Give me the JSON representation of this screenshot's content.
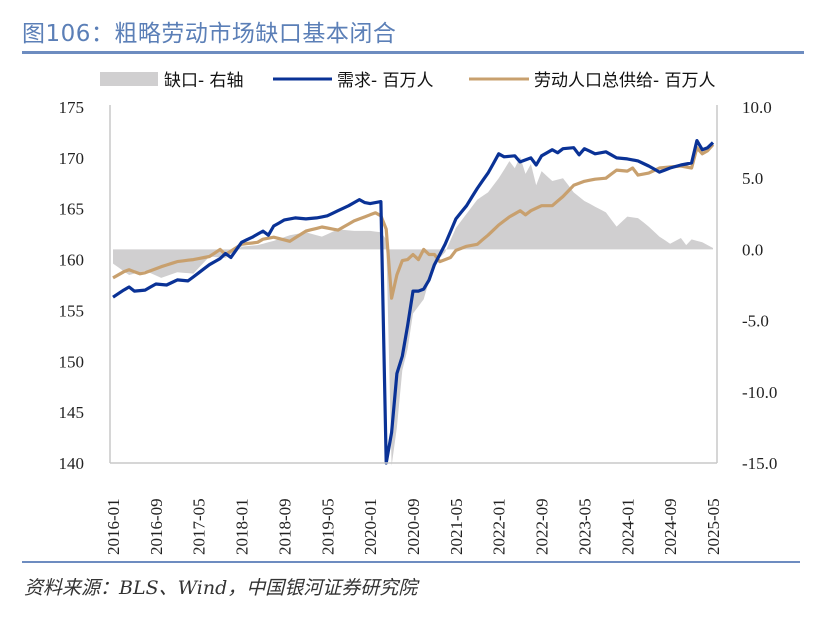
{
  "header": {
    "title": "图106：粗略劳动市场缺口基本闭合"
  },
  "footer": {
    "source": "资料来源：BLS、Wind，中国银河证券研究院"
  },
  "colors": {
    "title": "#5b7fb7",
    "rule": "#6d8cc0",
    "demand": "#0a3296",
    "supply": "#c8a06e",
    "gap": "#d0cfd0",
    "axis": "#c8c8c8"
  },
  "legend": [
    {
      "label": "缺口- 右轴",
      "type": "area"
    },
    {
      "label": "需求- 百万人",
      "type": "line"
    },
    {
      "label": "劳动人口总供给- 百万人",
      "type": "line"
    }
  ],
  "chart_data": {
    "type": "line",
    "title": "图106：粗略劳动市场缺口基本闭合",
    "x_start": "2016-01",
    "x_end": "2025-05",
    "x_months": 113,
    "xticks": [
      "2016-01",
      "2016-09",
      "2017-05",
      "2018-01",
      "2018-09",
      "2019-05",
      "2020-01",
      "2020-09",
      "2021-05",
      "2022-01",
      "2022-09",
      "2023-05",
      "2024-01",
      "2024-09",
      "2025-05"
    ],
    "left_axis": {
      "label": "百万人",
      "range": [
        140,
        175
      ],
      "ticks": [
        "175",
        "170",
        "165",
        "160",
        "155",
        "150",
        "145",
        "140"
      ]
    },
    "right_axis": {
      "label": "缺口",
      "range": [
        -15,
        10
      ],
      "ticks": [
        "10.0",
        "5.0",
        "0.0",
        "-5.0",
        "-10.0",
        "-15.0"
      ]
    },
    "legend_position": "top",
    "grid": false,
    "series": [
      {
        "name": "缺口- 右轴",
        "axis": "right",
        "kind": "area",
        "anchors": [
          [
            0,
            -1.0
          ],
          [
            3,
            -1.8
          ],
          [
            6,
            -1.5
          ],
          [
            9,
            -2.0
          ],
          [
            12,
            -1.6
          ],
          [
            15,
            -1.7
          ],
          [
            18,
            -0.5
          ],
          [
            21,
            -0.6
          ],
          [
            24,
            0.2
          ],
          [
            27,
            0.3
          ],
          [
            30,
            0.6
          ],
          [
            33,
            1.0
          ],
          [
            36,
            1.2
          ],
          [
            39,
            0.9
          ],
          [
            42,
            1.4
          ],
          [
            45,
            1.3
          ],
          [
            48,
            1.3
          ],
          [
            50,
            1.2
          ],
          [
            51,
            0.7
          ],
          [
            52,
            -15.8
          ],
          [
            53,
            -12.5
          ],
          [
            54,
            -8.5
          ],
          [
            55,
            -7.0
          ],
          [
            56,
            -4.5
          ],
          [
            57,
            -4.0
          ],
          [
            58,
            -3.5
          ],
          [
            59,
            -2.2
          ],
          [
            60,
            -1.0
          ],
          [
            62,
            -0.2
          ],
          [
            64,
            1.5
          ],
          [
            66,
            2.5
          ],
          [
            68,
            3.5
          ],
          [
            70,
            4.0
          ],
          [
            72,
            5.0
          ],
          [
            74,
            6.2
          ],
          [
            75,
            5.7
          ],
          [
            76,
            6.5
          ],
          [
            77,
            5.3
          ],
          [
            78,
            6.0
          ],
          [
            79,
            4.5
          ],
          [
            80,
            5.5
          ],
          [
            82,
            4.8
          ],
          [
            84,
            5.0
          ],
          [
            86,
            4.0
          ],
          [
            88,
            3.4
          ],
          [
            90,
            3.0
          ],
          [
            92,
            2.6
          ],
          [
            94,
            1.6
          ],
          [
            96,
            2.3
          ],
          [
            98,
            2.2
          ],
          [
            100,
            1.6
          ],
          [
            102,
            0.9
          ],
          [
            104,
            0.4
          ],
          [
            106,
            0.8
          ],
          [
            107,
            0.3
          ],
          [
            108,
            0.7
          ],
          [
            110,
            0.5
          ],
          [
            112,
            0.1
          ]
        ]
      },
      {
        "name": "需求- 百万人",
        "axis": "left",
        "kind": "line",
        "anchors": [
          [
            0,
            156.3
          ],
          [
            2,
            157.0
          ],
          [
            3,
            157.3
          ],
          [
            4,
            156.9
          ],
          [
            6,
            157.0
          ],
          [
            8,
            157.6
          ],
          [
            10,
            157.5
          ],
          [
            12,
            158.0
          ],
          [
            14,
            157.9
          ],
          [
            16,
            158.7
          ],
          [
            18,
            159.5
          ],
          [
            20,
            160.1
          ],
          [
            21,
            160.6
          ],
          [
            22,
            160.2
          ],
          [
            24,
            161.7
          ],
          [
            26,
            162.2
          ],
          [
            28,
            162.8
          ],
          [
            29,
            162.4
          ],
          [
            30,
            163.3
          ],
          [
            32,
            163.9
          ],
          [
            34,
            164.1
          ],
          [
            36,
            164.0
          ],
          [
            38,
            164.1
          ],
          [
            40,
            164.3
          ],
          [
            42,
            164.8
          ],
          [
            44,
            165.3
          ],
          [
            46,
            165.9
          ],
          [
            47,
            165.6
          ],
          [
            48,
            165.5
          ],
          [
            50,
            165.7
          ],
          [
            51,
            140.0
          ],
          [
            52,
            143.0
          ],
          [
            53,
            148.8
          ],
          [
            54,
            150.5
          ],
          [
            55,
            153.5
          ],
          [
            56,
            156.9
          ],
          [
            57,
            156.9
          ],
          [
            58,
            157.1
          ],
          [
            59,
            158.0
          ],
          [
            60,
            159.5
          ],
          [
            62,
            161.5
          ],
          [
            64,
            164.0
          ],
          [
            66,
            165.3
          ],
          [
            68,
            167.0
          ],
          [
            70,
            168.5
          ],
          [
            72,
            170.4
          ],
          [
            73,
            170.1
          ],
          [
            75,
            170.2
          ],
          [
            76,
            169.6
          ],
          [
            78,
            170.0
          ],
          [
            79,
            169.3
          ],
          [
            80,
            170.2
          ],
          [
            82,
            170.8
          ],
          [
            83,
            170.5
          ],
          [
            84,
            170.9
          ],
          [
            86,
            171.0
          ],
          [
            87,
            170.3
          ],
          [
            88,
            170.9
          ],
          [
            90,
            170.4
          ],
          [
            92,
            170.6
          ],
          [
            94,
            170.0
          ],
          [
            96,
            169.9
          ],
          [
            98,
            169.7
          ],
          [
            100,
            169.2
          ],
          [
            102,
            168.6
          ],
          [
            104,
            169.0
          ],
          [
            106,
            169.3
          ],
          [
            108,
            169.5
          ],
          [
            109,
            171.7
          ],
          [
            110,
            170.8
          ],
          [
            111,
            171.0
          ],
          [
            112,
            171.5
          ]
        ]
      },
      {
        "name": "劳动人口总供给- 百万人",
        "axis": "left",
        "kind": "line",
        "anchors": [
          [
            0,
            158.2
          ],
          [
            2,
            158.8
          ],
          [
            3,
            159.0
          ],
          [
            5,
            158.6
          ],
          [
            6,
            158.7
          ],
          [
            9,
            159.3
          ],
          [
            12,
            159.8
          ],
          [
            15,
            160.0
          ],
          [
            18,
            160.3
          ],
          [
            20,
            161.0
          ],
          [
            21,
            160.5
          ],
          [
            24,
            161.5
          ],
          [
            27,
            161.7
          ],
          [
            28,
            162.0
          ],
          [
            30,
            162.2
          ],
          [
            33,
            161.8
          ],
          [
            36,
            162.8
          ],
          [
            39,
            163.2
          ],
          [
            42,
            162.9
          ],
          [
            45,
            163.8
          ],
          [
            47,
            164.2
          ],
          [
            48,
            164.4
          ],
          [
            49,
            164.6
          ],
          [
            50,
            164.3
          ],
          [
            51,
            163.0
          ],
          [
            52,
            156.2
          ],
          [
            53,
            158.5
          ],
          [
            54,
            159.9
          ],
          [
            55,
            160.0
          ],
          [
            56,
            160.5
          ],
          [
            57,
            160.0
          ],
          [
            58,
            161.0
          ],
          [
            59,
            160.5
          ],
          [
            60,
            160.5
          ],
          [
            61,
            159.8
          ],
          [
            63,
            160.2
          ],
          [
            64,
            160.9
          ],
          [
            66,
            161.3
          ],
          [
            68,
            161.5
          ],
          [
            70,
            162.4
          ],
          [
            72,
            163.4
          ],
          [
            74,
            164.2
          ],
          [
            76,
            164.8
          ],
          [
            77,
            164.4
          ],
          [
            78,
            164.8
          ],
          [
            80,
            165.3
          ],
          [
            82,
            165.3
          ],
          [
            84,
            166.2
          ],
          [
            86,
            167.3
          ],
          [
            88,
            167.7
          ],
          [
            90,
            167.9
          ],
          [
            92,
            168.0
          ],
          [
            94,
            168.8
          ],
          [
            96,
            168.7
          ],
          [
            97,
            169.0
          ],
          [
            98,
            168.3
          ],
          [
            100,
            168.5
          ],
          [
            102,
            169.0
          ],
          [
            104,
            169.1
          ],
          [
            106,
            169.2
          ],
          [
            108,
            169.0
          ],
          [
            109,
            171.0
          ],
          [
            110,
            170.4
          ],
          [
            111,
            170.7
          ],
          [
            112,
            171.3
          ]
        ]
      }
    ]
  }
}
